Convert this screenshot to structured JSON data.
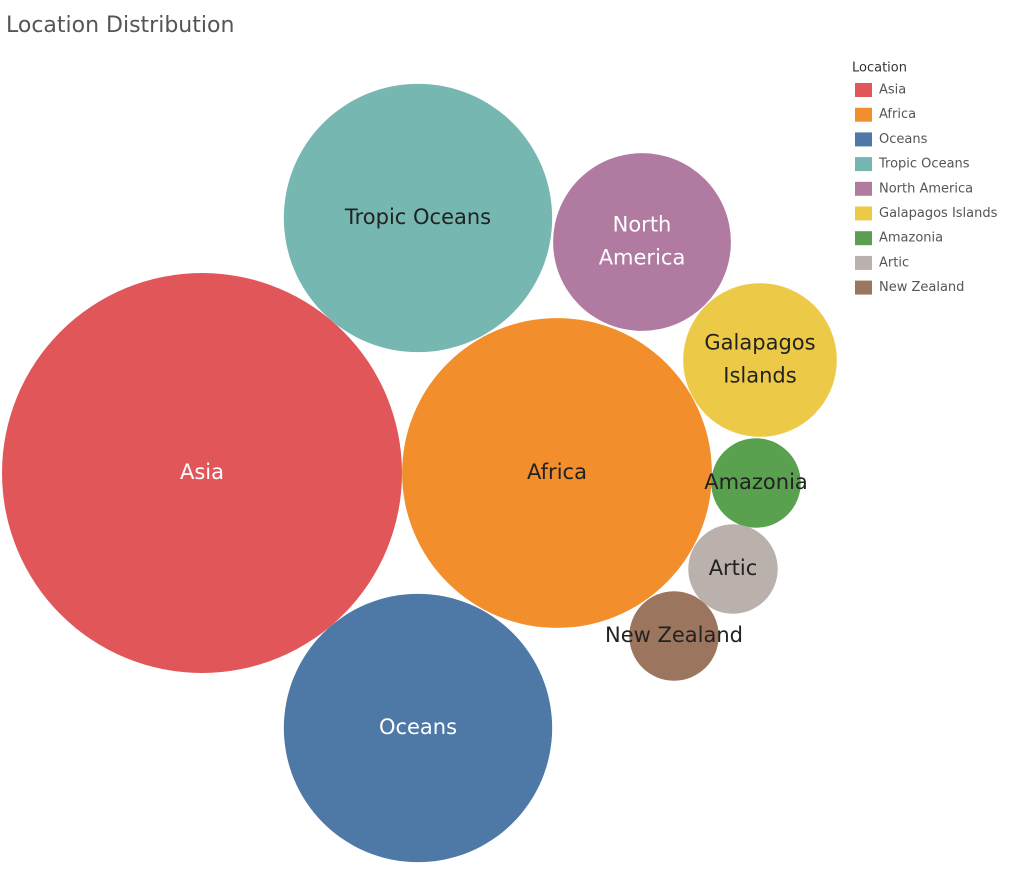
{
  "chart_data": {
    "type": "bubble",
    "title": "Location Distribution",
    "legend_title": "Location",
    "categories": [
      "Asia",
      "Africa",
      "Oceans",
      "Tropic Oceans",
      "North America",
      "Galapagos Islands",
      "Amazonia",
      "Artic",
      "New Zealand"
    ],
    "values": [
      400,
      240,
      180,
      180,
      79,
      59,
      20,
      20,
      20
    ],
    "colors": [
      "#e15759",
      "#f28e2b",
      "#4e79a7",
      "#76b7b2",
      "#b07aa1",
      "#edc948",
      "#59a14f",
      "#bab0ac",
      "#9c755f"
    ]
  }
}
